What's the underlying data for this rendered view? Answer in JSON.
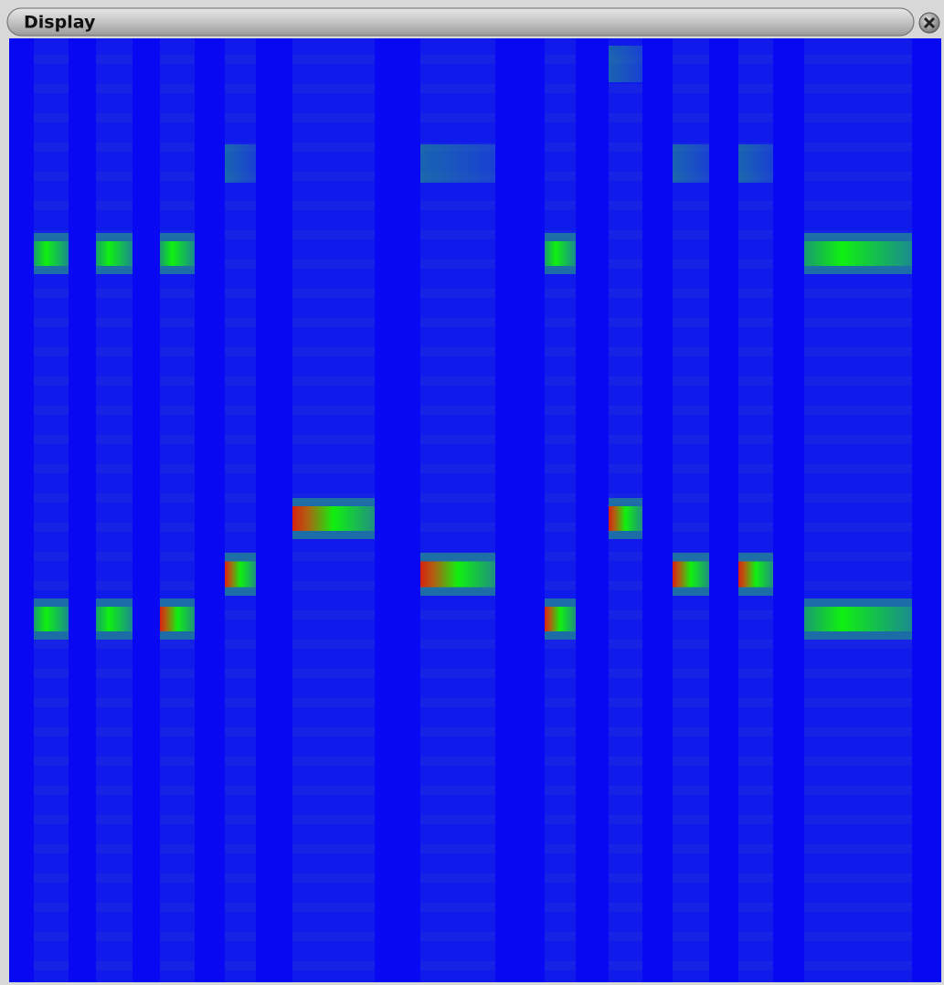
{
  "window": {
    "title": "Display"
  }
}
